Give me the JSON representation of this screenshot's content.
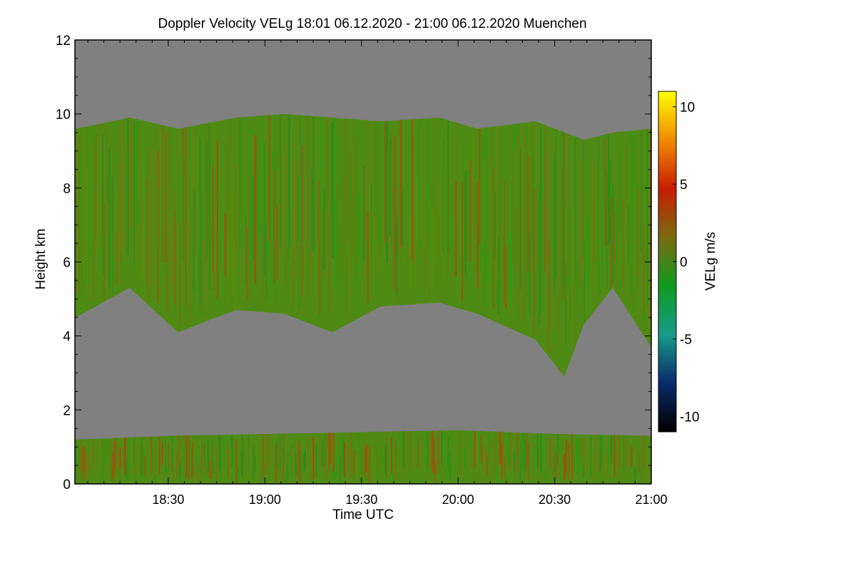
{
  "chart_data": {
    "type": "heatmap",
    "title": "Doppler Velocity VELg   18:01 06.12.2020 - 21:00 06.12.2020 Muenchen",
    "xlabel": "Time UTC",
    "ylabel": "Height km",
    "xlim": [
      "18:01",
      "21:00"
    ],
    "ylim": [
      0,
      12
    ],
    "x_ticks": [
      "18:30",
      "19:00",
      "19:30",
      "20:00",
      "20:30",
      "21:00"
    ],
    "y_ticks": [
      "0",
      "2",
      "4",
      "6",
      "8",
      "10",
      "12"
    ],
    "no_data_color": "#808080",
    "colorbar": {
      "label": "VELg m/s",
      "range": [
        -11,
        11
      ],
      "ticks": [
        "-10",
        "-5",
        "0",
        "5",
        "10"
      ],
      "colors": [
        "#000000",
        "#0a2a6a",
        "#1a9a8a",
        "#109a20",
        "#7a6a10",
        "#c81e00",
        "#f08a00",
        "#ffff00"
      ]
    },
    "layers": [
      {
        "name": "upper cloud layer",
        "time_hours": [
          18.02,
          18.3,
          18.55,
          18.85,
          19.1,
          19.35,
          19.6,
          19.9,
          20.1,
          20.4,
          20.55,
          20.65,
          20.8,
          21.0
        ],
        "base_km": [
          4.5,
          5.3,
          4.1,
          4.7,
          4.6,
          4.1,
          4.8,
          4.9,
          4.6,
          3.9,
          2.9,
          4.3,
          5.3,
          3.7
        ],
        "top_km": [
          9.6,
          9.9,
          9.6,
          9.9,
          10.0,
          9.9,
          9.8,
          9.9,
          9.6,
          9.8,
          9.5,
          9.3,
          9.5,
          9.6
        ],
        "typical_velocity_ms": "-2 to 2"
      },
      {
        "name": "lower layer",
        "time_hours": [
          18.02,
          18.5,
          19.0,
          19.5,
          20.0,
          20.5,
          21.0
        ],
        "base_km": [
          0,
          0,
          0,
          0,
          0,
          0,
          0
        ],
        "top_km": [
          1.2,
          1.3,
          1.35,
          1.4,
          1.45,
          1.35,
          1.3
        ],
        "typical_velocity_ms": "-2 to 2"
      }
    ]
  }
}
